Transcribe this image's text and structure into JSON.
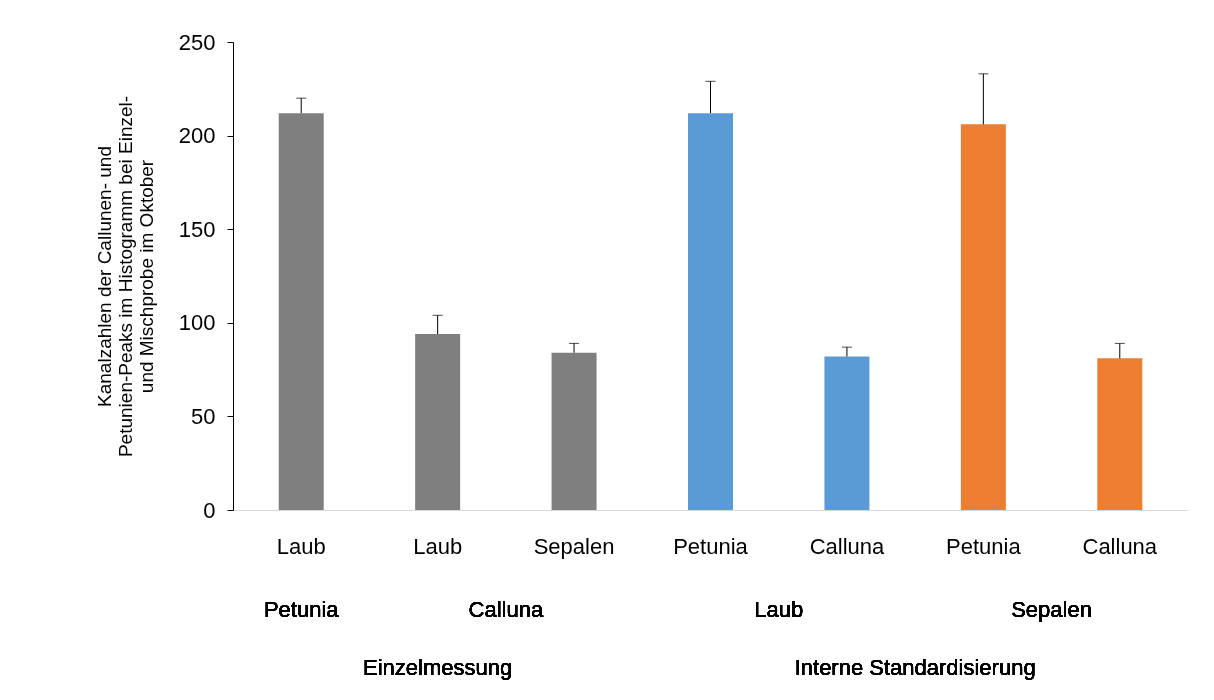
{
  "chart_data": {
    "type": "bar",
    "ylabel": "Kanalzahlen der Callunen- und Petunien-Peaks im Histogramm bei Einzel- und Mischprobe im Oktober",
    "categories": [
      "Laub",
      "Laub",
      "Sepalen",
      "Petunia",
      "Calluna",
      "Petunia",
      "Calluna"
    ],
    "values": [
      212,
      94,
      84,
      212,
      82,
      206,
      81
    ],
    "errors": [
      [
        212,
        220
      ],
      [
        94,
        104
      ],
      [
        84,
        89
      ],
      [
        212,
        229
      ],
      [
        82,
        87
      ],
      [
        206,
        233
      ],
      [
        81,
        89
      ]
    ],
    "colors": [
      "#7f7f7f",
      "#7f7f7f",
      "#7f7f7f",
      "#5b9bd5",
      "#5b9bd5",
      "#ed7d31",
      "#ed7d31"
    ],
    "ylim": [
      0,
      250
    ],
    "yticks": [
      0,
      50,
      100,
      150,
      200,
      250
    ],
    "annotations": [
      "Petunia",
      "Calluna",
      "Laub",
      "Sepalen",
      "Einzelmessung",
      "Interne Standardisierung"
    ],
    "grid": false
  }
}
